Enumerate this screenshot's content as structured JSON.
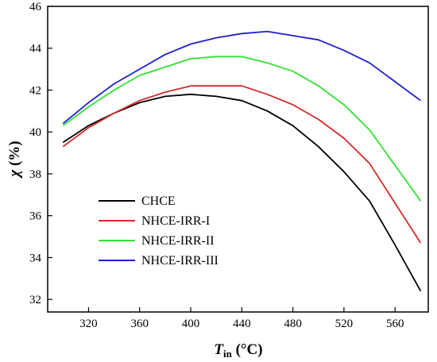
{
  "chart_data": {
    "type": "line",
    "xlabel_main": "T",
    "xlabel_sub": "in",
    "xlabel_unit": " (°C)",
    "ylabel_symbol": "χ",
    "ylabel_unit": " (%)",
    "xlim": [
      288,
      586
    ],
    "ylim": [
      31.4,
      46
    ],
    "xticks": [
      320,
      360,
      400,
      440,
      480,
      520,
      560
    ],
    "yticks": [
      32,
      34,
      36,
      38,
      40,
      42,
      44,
      46
    ],
    "grid": false,
    "legend_position": "bottom-left",
    "x": [
      300,
      320,
      340,
      360,
      380,
      400,
      420,
      440,
      460,
      480,
      500,
      520,
      540,
      560,
      580
    ],
    "series": [
      {
        "name": "CHCE",
        "color": "#000000",
        "values": [
          39.5,
          40.3,
          40.9,
          41.4,
          41.7,
          41.8,
          41.7,
          41.5,
          41.0,
          40.3,
          39.3,
          38.1,
          36.7,
          34.6,
          32.4
        ]
      },
      {
        "name": "NHCE-IRR-I",
        "color": "#d42a2a",
        "values": [
          39.3,
          40.2,
          40.9,
          41.5,
          41.9,
          42.2,
          42.2,
          42.2,
          41.8,
          41.3,
          40.6,
          39.7,
          38.5,
          36.6,
          34.7
        ]
      },
      {
        "name": "NHCE-IRR-II",
        "color": "#33e033",
        "values": [
          40.3,
          41.2,
          42.0,
          42.7,
          43.1,
          43.5,
          43.6,
          43.6,
          43.3,
          42.9,
          42.2,
          41.3,
          40.1,
          38.4,
          36.7
        ]
      },
      {
        "name": "NHCE-IRR-III",
        "color": "#1f1fd0",
        "values": [
          40.4,
          41.4,
          42.3,
          43.0,
          43.7,
          44.2,
          44.5,
          44.7,
          44.8,
          44.6,
          44.4,
          43.9,
          43.3,
          42.4,
          41.5
        ]
      }
    ]
  }
}
